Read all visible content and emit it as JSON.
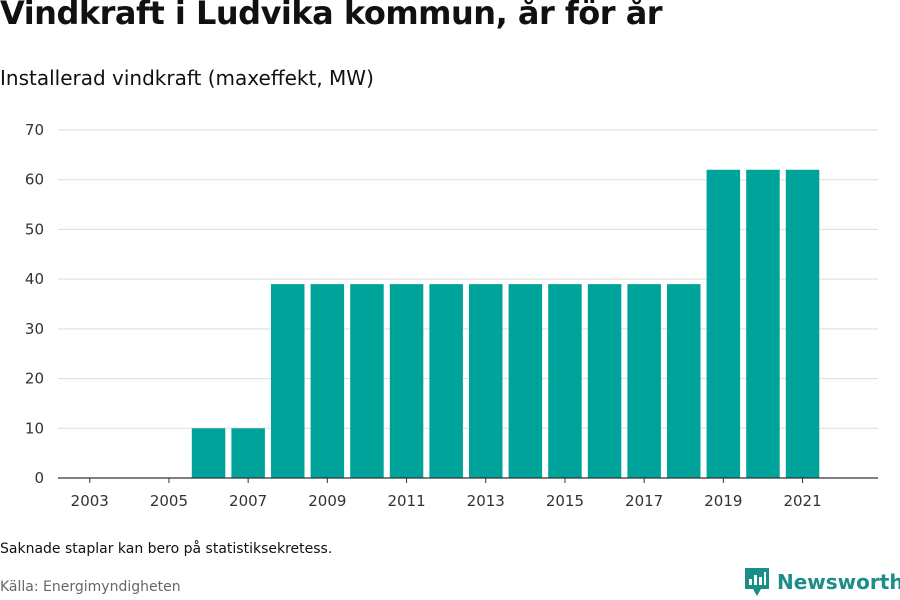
{
  "title": "Vindkraft i Ludvika kommun, år för år",
  "subtitle": "Installerad vindkraft (maxeffekt, MW)",
  "note": "Saknade staplar kan bero på statistiksekretess.",
  "source": "Källa: Energimyndigheten",
  "brand": {
    "name": "Newsworthy",
    "icon": "newsworthy-logo-icon",
    "color": "#1a8f8a"
  },
  "chart_data": {
    "type": "bar",
    "title": "Vindkraft i Ludvika kommun, år för år",
    "subtitle": "Installerad vindkraft (maxeffekt, MW)",
    "xlabel": "",
    "ylabel": "",
    "categories": [
      "2003",
      "2004",
      "2005",
      "2006",
      "2007",
      "2008",
      "2009",
      "2010",
      "2011",
      "2012",
      "2013",
      "2014",
      "2015",
      "2016",
      "2017",
      "2018",
      "2019",
      "2020",
      "2021"
    ],
    "x_tick_labels": [
      "2003",
      "2005",
      "2007",
      "2009",
      "2011",
      "2013",
      "2015",
      "2017",
      "2019",
      "2021"
    ],
    "values": [
      null,
      null,
      null,
      10,
      10,
      39,
      39,
      39,
      39,
      39,
      39,
      39,
      39,
      39,
      39,
      39,
      62,
      62,
      62
    ],
    "ylim": [
      0,
      70
    ],
    "yticks": [
      0,
      10,
      20,
      30,
      40,
      50,
      60,
      70
    ],
    "grid": true,
    "bar_color": "#00a39a",
    "grid_color": "#dddddd",
    "axis_color": "#333333"
  }
}
